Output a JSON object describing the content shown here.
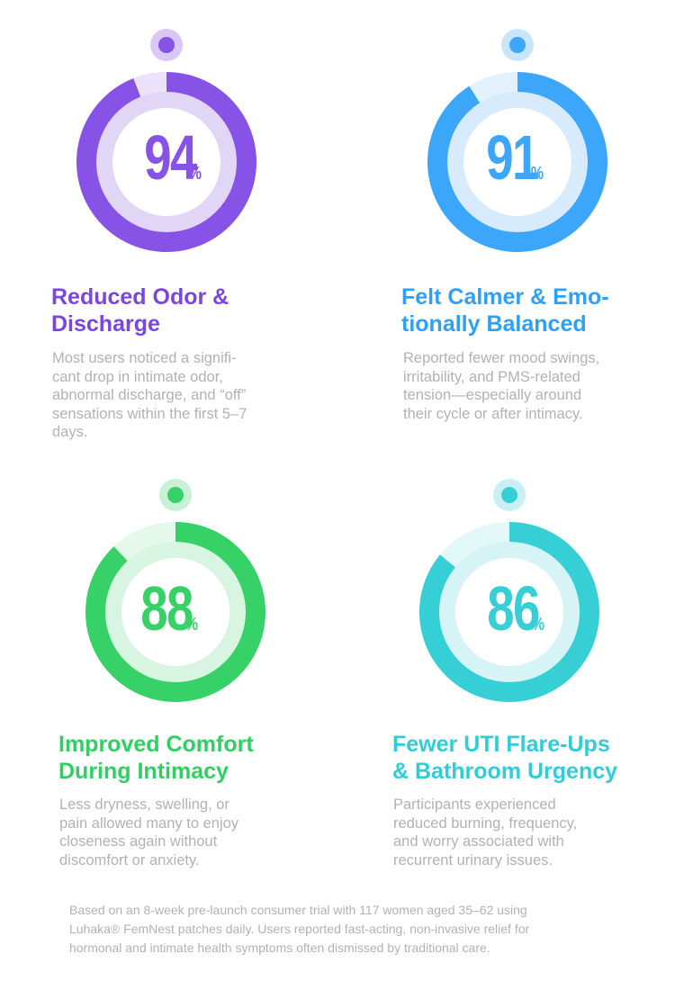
{
  "chart_data": {
    "type": "donut",
    "categories": [
      "Reduced Odor & Discharge",
      "Felt Calmer & Emo-tionally Balanced",
      "Improved Comfort During Intimacy",
      "Fewer UTI Flare-Ups & Bathroom Urgency"
    ],
    "values": [
      94,
      91,
      88,
      86
    ],
    "unit": "%",
    "ylim": [
      0,
      100
    ]
  },
  "stats": [
    {
      "value": "94",
      "unit": "%",
      "percent": 94,
      "title_lines": [
        "Reduced Odor &",
        "Discharge"
      ],
      "desc_lines": [
        "Most users noticed a signifi-",
        "cant drop in intimate odor,",
        "abnormal discharge, and “off”",
        "sensations within the first 5–7",
        "days."
      ],
      "colors": {
        "ring": "#8753e6",
        "track": "#ece2fb",
        "inner": "#e2d6f7",
        "center": "#ffffff",
        "number": "#8753e6",
        "title": "#7a45e0",
        "dot": "#8753e6",
        "dot_halo": "#d9c8f6"
      }
    },
    {
      "value": "91",
      "unit": "%",
      "percent": 91,
      "title_lines": [
        "Felt Calmer & Emo-",
        "tionally Balanced"
      ],
      "desc_lines": [
        "Reported fewer mood swings,",
        "irritability, and PMS-related",
        "tension—especially around",
        "their cycle or after intimacy."
      ],
      "colors": {
        "ring": "#3ba6fa",
        "track": "#e3f1fe",
        "inner": "#d7ebfd",
        "center": "#ffffff",
        "number": "#3ba6fa",
        "title": "#2f9ff8",
        "dot": "#3ba6fa",
        "dot_halo": "#c9e5fd"
      }
    },
    {
      "value": "88",
      "unit": "%",
      "percent": 88,
      "title_lines": [
        "Improved Comfort",
        "During Intimacy"
      ],
      "desc_lines": [
        "Less dryness, swelling, or",
        "pain allowed many to enjoy",
        "closeness again without",
        "discomfort or anxiety."
      ],
      "colors": {
        "ring": "#36d268",
        "track": "#e4f9ea",
        "inner": "#d8f5e1",
        "center": "#ffffff",
        "number": "#36d268",
        "title": "#2fd062",
        "dot": "#36d268",
        "dot_halo": "#c9f1d6"
      }
    },
    {
      "value": "86",
      "unit": "%",
      "percent": 86,
      "title_lines": [
        "Fewer UTI Flare-Ups",
        "& Bathroom Urgency"
      ],
      "desc_lines": [
        "Participants experienced",
        "reduced burning, frequency,",
        "and worry associated with",
        "recurrent urinary issues."
      ],
      "colors": {
        "ring": "#36cfd6",
        "track": "#e2f8f9",
        "inner": "#d6f4f5",
        "center": "#ffffff",
        "number": "#36cfd6",
        "title": "#2fcdd6",
        "dot": "#36cfd6",
        "dot_halo": "#c8f0f2"
      }
    }
  ],
  "footnote": {
    "lines": [
      "Based on an 8-week pre-launch consumer trial with 117 women aged 35–62 using",
      "Luhaka® FemNest patches daily. Users reported fast-acting, non-invasive relief for",
      "hormonal and intimate health symptoms often dismissed by traditional care."
    ]
  }
}
